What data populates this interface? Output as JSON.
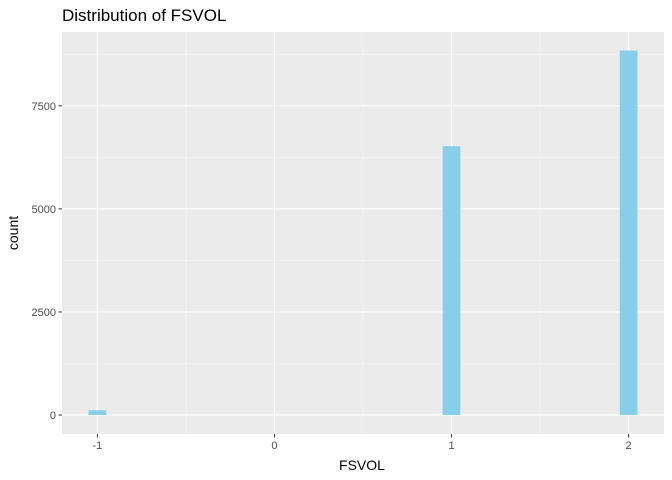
{
  "chart_data": {
    "type": "bar",
    "title": "Distribution of FSVOL",
    "xlabel": "FSVOL",
    "ylabel": "count",
    "x": [
      -1,
      1,
      2
    ],
    "values": [
      115,
      6520,
      8840
    ],
    "bin_width": 0.1,
    "xlim": [
      -1.2,
      2.2
    ],
    "ylim": [
      -460,
      9290
    ],
    "x_ticks": [
      -1,
      0,
      1,
      2
    ],
    "x_tick_labels": [
      "-1",
      "0",
      "1",
      "2"
    ],
    "y_ticks": [
      0,
      2500,
      5000,
      7500
    ],
    "y_tick_labels": [
      "0",
      "2500",
      "5000",
      "7500"
    ],
    "grid": true,
    "colors": {
      "bar": "#87CEEB",
      "panel": "#EBEBEB",
      "grid_major": "#FFFFFF",
      "grid_minor": "#F5F5F5",
      "tick": "#333333"
    }
  }
}
